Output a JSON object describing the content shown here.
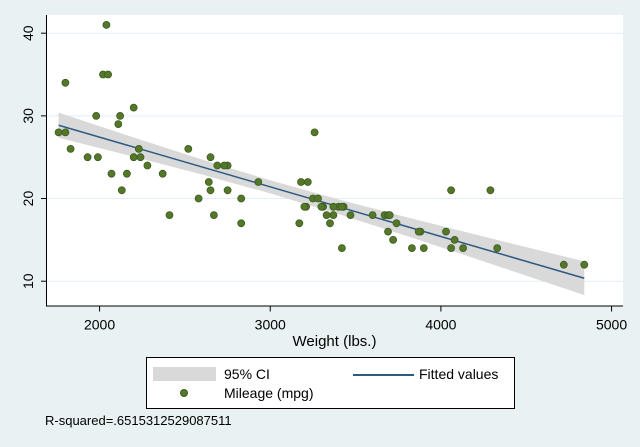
{
  "figure": {
    "background_color": "#eaf1f3",
    "plot_background": "#ffffff",
    "axis_color": "#000000",
    "note": "R-squared=.6515312529087511"
  },
  "chart_data": {
    "type": "scatter",
    "title": "",
    "xlabel": "Weight (lbs.)",
    "ylabel": "",
    "xlim": [
      1689,
      5067
    ],
    "ylim": [
      7,
      42.2
    ],
    "x_ticks": [
      2000,
      3000,
      4000,
      5000
    ],
    "y_ticks": [
      10,
      20,
      30,
      40
    ],
    "grid": {
      "horizontal": true,
      "vertical": false,
      "color": "#e3edf2"
    },
    "series": [
      {
        "name": "95% CI",
        "type": "ci_band",
        "color": "#d9d9d9",
        "points": [
          {
            "x": 1760,
            "lo": 27.34,
            "hi": 30.39
          },
          {
            "x": 2200,
            "lo": 25.06,
            "hi": 27.38
          },
          {
            "x": 2600,
            "lo": 22.91,
            "hi": 24.72
          },
          {
            "x": 3000,
            "lo": 20.62,
            "hi": 22.21
          },
          {
            "x": 3400,
            "lo": 18.12,
            "hi": 19.9
          },
          {
            "x": 3800,
            "lo": 15.47,
            "hi": 17.74
          },
          {
            "x": 4200,
            "lo": 12.75,
            "hi": 15.66
          },
          {
            "x": 4600,
            "lo": 9.98,
            "hi": 13.62
          },
          {
            "x": 4840,
            "lo": 8.32,
            "hi": 12.4
          }
        ]
      },
      {
        "name": "Fitted values",
        "type": "line",
        "color": "#2d5a83",
        "fit": {
          "intercept": 39.44028,
          "slope": -0.0060087
        },
        "x_range": [
          1760,
          4840
        ]
      },
      {
        "name": "Mileage (mpg)",
        "type": "scatter",
        "color": "#54782a",
        "stroke": "#3d5a1e",
        "marker": "circle",
        "points": [
          [
            2930,
            22
          ],
          [
            3350,
            17
          ],
          [
            2640,
            22
          ],
          [
            3250,
            20
          ],
          [
            4080,
            15
          ],
          [
            3670,
            18
          ],
          [
            2230,
            26
          ],
          [
            3280,
            20
          ],
          [
            3880,
            16
          ],
          [
            3400,
            19
          ],
          [
            4330,
            14
          ],
          [
            3900,
            14
          ],
          [
            4290,
            21
          ],
          [
            2110,
            29
          ],
          [
            3690,
            16
          ],
          [
            3180,
            22
          ],
          [
            3220,
            22
          ],
          [
            2750,
            24
          ],
          [
            3430,
            19
          ],
          [
            2120,
            30
          ],
          [
            3600,
            18
          ],
          [
            3870,
            16
          ],
          [
            3740,
            17
          ],
          [
            1800,
            28
          ],
          [
            2650,
            21
          ],
          [
            4840,
            12
          ],
          [
            4720,
            12
          ],
          [
            3830,
            14
          ],
          [
            2580,
            20
          ],
          [
            4060,
            14
          ],
          [
            3720,
            15
          ],
          [
            3370,
            18
          ],
          [
            4130,
            14
          ],
          [
            2830,
            20
          ],
          [
            4060,
            21
          ],
          [
            3310,
            19
          ],
          [
            3300,
            19
          ],
          [
            3690,
            18
          ],
          [
            3370,
            19
          ],
          [
            2730,
            24
          ],
          [
            4030,
            16
          ],
          [
            3260,
            28
          ],
          [
            1800,
            34
          ],
          [
            2200,
            25
          ],
          [
            2520,
            26
          ],
          [
            3330,
            18
          ],
          [
            3700,
            18
          ],
          [
            3470,
            18
          ],
          [
            3210,
            19
          ],
          [
            3200,
            19
          ],
          [
            3420,
            19
          ],
          [
            2690,
            24
          ],
          [
            2830,
            17
          ],
          [
            2070,
            23
          ],
          [
            2650,
            25
          ],
          [
            2370,
            23
          ],
          [
            2020,
            35
          ],
          [
            2280,
            24
          ],
          [
            2750,
            21
          ],
          [
            2130,
            21
          ],
          [
            2240,
            25
          ],
          [
            1760,
            28
          ],
          [
            1980,
            30
          ],
          [
            3420,
            14
          ],
          [
            1830,
            26
          ],
          [
            2050,
            35
          ],
          [
            2410,
            18
          ],
          [
            2200,
            31
          ],
          [
            2670,
            18
          ],
          [
            2160,
            23
          ],
          [
            2040,
            41
          ],
          [
            1930,
            25
          ],
          [
            1990,
            25
          ],
          [
            3170,
            17
          ]
        ]
      }
    ],
    "legend": {
      "position": "bottom",
      "items": [
        {
          "label": "95% CI",
          "swatch": "area"
        },
        {
          "label": "Fitted values",
          "swatch": "line"
        },
        {
          "label": "Mileage (mpg)",
          "swatch": "marker"
        }
      ]
    }
  }
}
